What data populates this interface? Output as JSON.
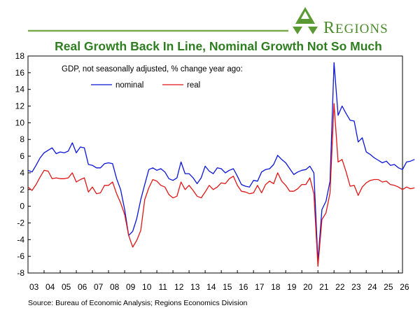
{
  "brand": {
    "name_first": "R",
    "name_rest": "EGIONS"
  },
  "colors": {
    "nominal": "#0a14d8",
    "real": "#e01515",
    "accent": "#7aa84a",
    "title": "#2e7d1f"
  },
  "chart_data": {
    "type": "line",
    "title": "Real Growth Back In Line, Nominal Growth Not So Much",
    "subtitle": "GDP, not seasonally adjusted, % change year ago:",
    "source": "Source: Bureau of Economic Analysis; Regions Economics Division",
    "ylim": [
      -8,
      18
    ],
    "yticks": [
      "18",
      "16",
      "14",
      "12",
      "10",
      "8",
      "6",
      "4",
      "2",
      "0",
      "-2",
      "-4",
      "-6",
      "-8"
    ],
    "xticks": [
      "03",
      "04",
      "05",
      "06",
      "07",
      "08",
      "09",
      "10",
      "11",
      "12",
      "13",
      "14",
      "15",
      "16",
      "17",
      "18",
      "19",
      "20",
      "21",
      "22",
      "23",
      "24",
      "25",
      "26"
    ],
    "x_start": 2003.0,
    "x_step": 0.25,
    "legend_position": "top-left",
    "series": [
      {
        "name": "nominal",
        "values": [
          4.3,
          4.1,
          4.9,
          5.8,
          6.4,
          6.7,
          7.0,
          6.3,
          6.5,
          6.4,
          6.6,
          7.6,
          6.4,
          7.1,
          7.0,
          5.0,
          4.9,
          4.6,
          4.6,
          5.1,
          5.2,
          5.1,
          3.3,
          2.0,
          -0.4,
          -3.5,
          -3.0,
          -1.5,
          0.8,
          2.6,
          4.4,
          4.6,
          4.3,
          4.5,
          4.1,
          3.3,
          3.1,
          3.4,
          5.3,
          3.9,
          3.9,
          3.4,
          2.7,
          3.4,
          4.8,
          4.2,
          3.9,
          4.6,
          4.5,
          4.0,
          4.3,
          4.5,
          3.6,
          2.6,
          2.4,
          2.3,
          3.1,
          3.0,
          4.1,
          4.4,
          4.5,
          5.0,
          6.1,
          5.6,
          5.2,
          4.5,
          3.8,
          4.1,
          4.3,
          4.4,
          4.8,
          4.0,
          -6.6,
          -0.4,
          0.6,
          3.0,
          17.2,
          10.9,
          12.0,
          11.1,
          10.3,
          10.2,
          7.7,
          8.2,
          6.5,
          6.2,
          5.8,
          5.5,
          5.2,
          5.4,
          4.9,
          5.0,
          4.6,
          4.4,
          5.3,
          5.4,
          5.6
        ]
      },
      {
        "name": "real",
        "values": [
          2.3,
          1.9,
          2.6,
          3.5,
          4.3,
          4.2,
          3.3,
          3.4,
          3.3,
          3.3,
          3.4,
          4.0,
          2.9,
          3.2,
          3.4,
          1.7,
          2.3,
          1.5,
          1.6,
          2.5,
          2.5,
          2.9,
          1.5,
          0.4,
          -1.0,
          -3.5,
          -4.9,
          -4.1,
          -2.9,
          0.8,
          2.2,
          3.2,
          3.0,
          2.5,
          2.3,
          1.4,
          1.0,
          1.2,
          2.9,
          2.0,
          2.5,
          1.9,
          1.2,
          1.0,
          1.7,
          2.5,
          2.0,
          2.3,
          2.8,
          2.7,
          3.3,
          3.6,
          2.5,
          1.8,
          1.7,
          1.5,
          1.6,
          2.5,
          1.6,
          2.6,
          3.0,
          2.7,
          4.0,
          3.0,
          2.5,
          1.8,
          1.8,
          2.1,
          2.6,
          2.6,
          3.4,
          1.5,
          -7.2,
          -1.6,
          -0.8,
          1.6,
          12.3,
          5.3,
          5.6,
          4.1,
          2.4,
          2.5,
          1.3,
          2.3,
          2.8,
          3.1,
          3.2,
          3.2,
          2.9,
          3.0,
          2.6,
          2.5,
          2.3,
          2.0,
          2.3,
          2.1,
          2.2
        ]
      }
    ]
  }
}
